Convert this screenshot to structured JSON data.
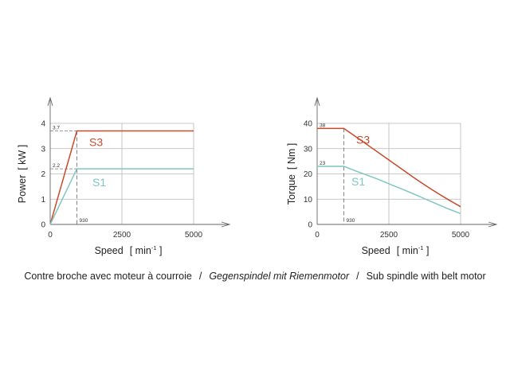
{
  "chart_data": [
    {
      "type": "line",
      "ylabel": "Power",
      "yunit": "[ kW ]",
      "xlabel": "Speed",
      "xunit": "[ min",
      "xunit_sup": "-1",
      "xunit_close": " ]",
      "xlim": [
        0,
        5000
      ],
      "ylim": [
        0,
        4
      ],
      "xticks": [
        0,
        2500,
        5000
      ],
      "yticks": [
        0,
        1,
        2,
        3,
        4
      ],
      "grid": true,
      "base_speed": 930,
      "base_speed_label": "930",
      "ref_levels": [
        {
          "value": 3.7,
          "label": "3.7"
        },
        {
          "value": 2.2,
          "label": "2.2"
        }
      ],
      "series": [
        {
          "name": "S3",
          "color": "#c84b2c",
          "x": [
            0,
            930,
            5000
          ],
          "y": [
            0,
            3.7,
            3.7
          ]
        },
        {
          "name": "S1",
          "color": "#7fc6c0",
          "x": [
            0,
            930,
            5000
          ],
          "y": [
            0,
            2.2,
            2.2
          ]
        }
      ]
    },
    {
      "type": "line",
      "ylabel": "Torque",
      "yunit": "[ Nm ]",
      "xlabel": "Speed",
      "xunit": "[ min",
      "xunit_sup": "-1",
      "xunit_close": " ]",
      "xlim": [
        0,
        5000
      ],
      "ylim": [
        0,
        40
      ],
      "xticks": [
        0,
        2500,
        5000
      ],
      "yticks": [
        0,
        10,
        20,
        30,
        40
      ],
      "grid": true,
      "base_speed": 930,
      "base_speed_label": "930",
      "ref_levels": [
        {
          "value": 38,
          "label": "38"
        },
        {
          "value": 23,
          "label": "23"
        }
      ],
      "series": [
        {
          "name": "S3",
          "color": "#c84b2c",
          "x": [
            0,
            930,
            1500,
            2000,
            2500,
            3000,
            3500,
            4000,
            4500,
            5000
          ],
          "y": [
            38,
            38,
            33.5,
            29.5,
            25.5,
            21.5,
            17.5,
            13.8,
            10.3,
            7
          ]
        },
        {
          "name": "S1",
          "color": "#7fc6c0",
          "x": [
            0,
            930,
            1500,
            2000,
            2500,
            3000,
            3500,
            4000,
            4500,
            5000
          ],
          "y": [
            23,
            23,
            20.5,
            18.4,
            16.1,
            13.8,
            11.4,
            8.9,
            6.5,
            4.3
          ]
        }
      ]
    }
  ],
  "caption": {
    "fr": "Contre broche avec moteur à courroie",
    "sep": "/",
    "de": "Gegenspindel mit Riemenmotor",
    "en": "Sub spindle with belt motor"
  }
}
